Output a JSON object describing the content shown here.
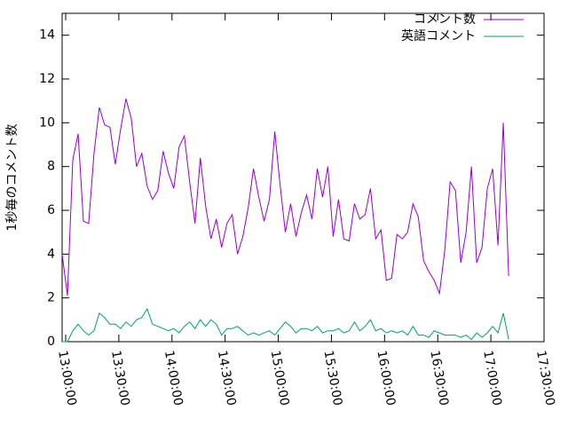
{
  "chart_data": {
    "type": "line",
    "y_label": "1秒毎のコメント数",
    "x": [
      "12:58:00",
      "13:01:00",
      "13:04:00",
      "13:07:00",
      "13:10:00",
      "13:13:00",
      "13:16:00",
      "13:19:00",
      "13:22:00",
      "13:25:00",
      "13:28:00",
      "13:31:00",
      "13:34:00",
      "13:37:00",
      "13:40:00",
      "13:43:00",
      "13:46:00",
      "13:49:00",
      "13:52:00",
      "13:55:00",
      "13:58:00",
      "14:01:00",
      "14:04:00",
      "14:07:00",
      "14:10:00",
      "14:13:00",
      "14:16:00",
      "14:19:00",
      "14:22:00",
      "14:25:00",
      "14:28:00",
      "14:31:00",
      "14:34:00",
      "14:37:00",
      "14:40:00",
      "14:43:00",
      "14:46:00",
      "14:49:00",
      "14:52:00",
      "14:55:00",
      "14:58:00",
      "15:01:00",
      "15:04:00",
      "15:07:00",
      "15:10:00",
      "15:13:00",
      "15:16:00",
      "15:19:00",
      "15:22:00",
      "15:25:00",
      "15:28:00",
      "15:31:00",
      "15:34:00",
      "15:37:00",
      "15:40:00",
      "15:43:00",
      "15:46:00",
      "15:49:00",
      "15:52:00",
      "15:55:00",
      "15:58:00",
      "16:01:00",
      "16:04:00",
      "16:07:00",
      "16:10:00",
      "16:13:00",
      "16:16:00",
      "16:19:00",
      "16:22:00",
      "16:25:00",
      "16:28:00",
      "16:31:00",
      "16:34:00",
      "16:37:00",
      "16:40:00",
      "16:43:00",
      "16:46:00",
      "16:49:00",
      "16:52:00",
      "16:55:00",
      "16:58:00",
      "17:01:00",
      "17:04:00",
      "17:07:00",
      "17:10:00"
    ],
    "series": [
      {
        "name": "コメント数",
        "color": "#9400d3",
        "values": [
          4.0,
          2.1,
          8.3,
          9.5,
          5.5,
          5.4,
          8.6,
          10.7,
          9.9,
          9.8,
          8.1,
          9.7,
          11.1,
          10.2,
          8.0,
          8.6,
          7.1,
          6.5,
          6.9,
          8.7,
          7.7,
          7.0,
          8.9,
          9.4,
          7.3,
          5.4,
          8.4,
          6.2,
          4.7,
          5.6,
          4.3,
          5.4,
          5.8,
          4.0,
          4.8,
          6.1,
          7.9,
          6.6,
          5.5,
          6.5,
          9.6,
          7.2,
          5.0,
          6.3,
          4.8,
          5.9,
          6.7,
          5.6,
          7.9,
          6.6,
          8.0,
          4.8,
          6.5,
          4.7,
          4.6,
          6.3,
          5.6,
          5.8,
          7.0,
          4.7,
          5.1,
          2.8,
          2.9,
          4.9,
          4.7,
          5.0,
          6.3,
          5.7,
          3.7,
          3.2,
          2.8,
          2.2,
          4.2,
          7.3,
          6.9,
          3.6,
          5.0,
          8.0,
          3.6,
          4.3,
          7.0,
          7.9,
          4.4,
          10.0,
          3.0
        ]
      },
      {
        "name": "英語コメント",
        "color": "#009e73",
        "values": [
          0.0,
          0.0,
          0.5,
          0.8,
          0.5,
          0.3,
          0.5,
          1.3,
          1.1,
          0.8,
          0.8,
          0.6,
          0.9,
          0.7,
          1.0,
          1.1,
          1.5,
          0.8,
          0.7,
          0.6,
          0.5,
          0.6,
          0.4,
          0.7,
          0.9,
          0.6,
          1.0,
          0.7,
          1.0,
          0.8,
          0.3,
          0.6,
          0.6,
          0.7,
          0.5,
          0.3,
          0.4,
          0.3,
          0.4,
          0.5,
          0.3,
          0.6,
          0.9,
          0.7,
          0.4,
          0.6,
          0.6,
          0.5,
          0.7,
          0.4,
          0.5,
          0.5,
          0.6,
          0.4,
          0.5,
          0.9,
          0.5,
          0.7,
          1.0,
          0.5,
          0.6,
          0.4,
          0.5,
          0.4,
          0.5,
          0.3,
          0.7,
          0.3,
          0.3,
          0.2,
          0.5,
          0.4,
          0.3,
          0.3,
          0.3,
          0.2,
          0.3,
          0.1,
          0.4,
          0.2,
          0.4,
          0.7,
          0.4,
          1.3,
          0.1
        ]
      }
    ],
    "xlim": [
      "12:58:00",
      "17:30:00"
    ],
    "xticks": [
      "13:00:00",
      "13:30:00",
      "14:00:00",
      "14:30:00",
      "15:00:00",
      "15:30:00",
      "16:00:00",
      "16:30:00",
      "17:00:00",
      "17:30:00"
    ],
    "ylim": [
      0,
      15
    ],
    "yticks": [
      0,
      2,
      4,
      6,
      8,
      10,
      12,
      14
    ],
    "legend": "top-right"
  }
}
